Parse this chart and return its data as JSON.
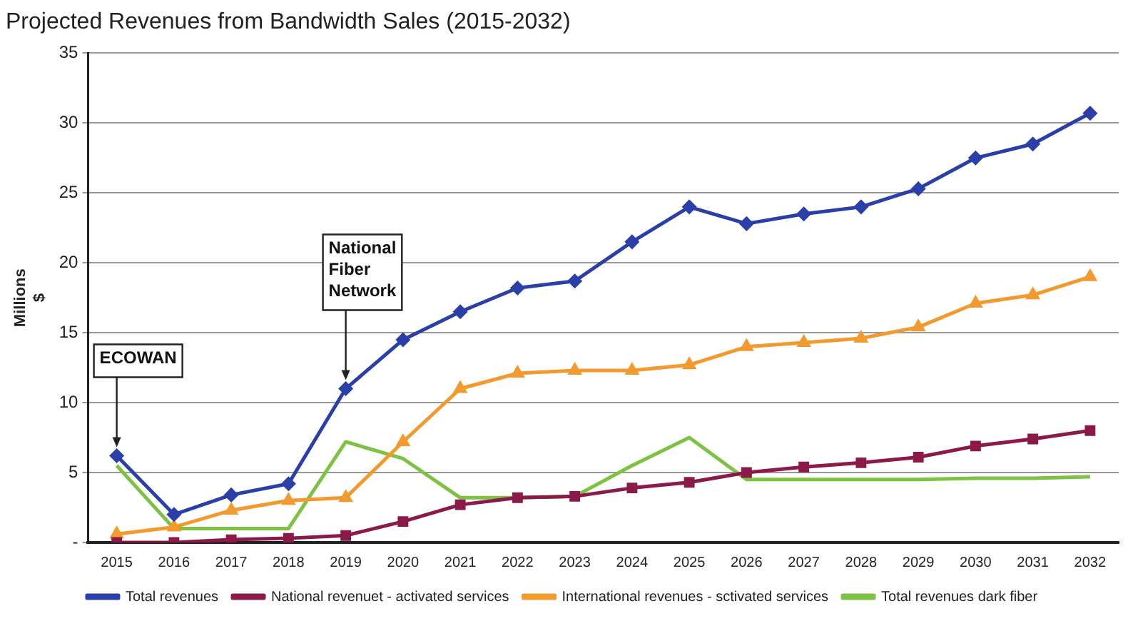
{
  "chart_data": {
    "type": "line",
    "title": "Projected Revenues from Bandwidth Sales (2015-2032)",
    "ylabel": "Millions $",
    "categories": [
      "2015",
      "2016",
      "2017",
      "2018",
      "2019",
      "2020",
      "2021",
      "2022",
      "2023",
      "2024",
      "2025",
      "2026",
      "2027",
      "2028",
      "2029",
      "2030",
      "2031",
      "2032"
    ],
    "series": [
      {
        "name": "Total revenues",
        "color": "#2b3fa8",
        "marker": "diamond",
        "values": [
          6.2,
          2.0,
          3.4,
          4.2,
          11,
          14.5,
          16.5,
          18.2,
          18.7,
          21.5,
          24,
          22.8,
          23.5,
          24,
          25.3,
          27.5,
          28.5,
          30.7
        ]
      },
      {
        "name": "National revenuet - activated services",
        "color": "#8b1a4a",
        "marker": "square",
        "values": [
          0,
          0,
          0.2,
          0.3,
          0.5,
          1.5,
          2.7,
          3.2,
          3.3,
          3.9,
          4.3,
          5,
          5.4,
          5.7,
          6.1,
          6.9,
          7.4,
          8.0
        ]
      },
      {
        "name": "International revenues - sctivated services",
        "color": "#f39a2e",
        "marker": "triangle",
        "values": [
          0.6,
          1.1,
          2.3,
          3.0,
          3.2,
          7.2,
          11,
          12.1,
          12.3,
          12.3,
          12.7,
          14,
          14.3,
          14.6,
          15.4,
          17.1,
          17.7,
          19
        ]
      },
      {
        "name": "Total revenues dark fiber",
        "color": "#7dc242",
        "marker": "none",
        "values": [
          5.5,
          1.0,
          1.0,
          1.0,
          7.2,
          6.0,
          3.2,
          3.2,
          3.3,
          5.5,
          7.5,
          4.5,
          4.5,
          4.5,
          4.5,
          4.6,
          4.6,
          4.7
        ]
      }
    ],
    "ylim": [
      0,
      35
    ],
    "yticks": [
      {
        "value": 0,
        "label": "-"
      },
      5,
      10,
      15,
      20,
      25,
      30,
      35
    ],
    "grid": "y",
    "legend": "bottom",
    "line_style": "solid",
    "annotations": [
      {
        "text": "ECOWAN",
        "x": "2015",
        "y": 6.2
      },
      {
        "text": "National Fiber Network",
        "x": "2019",
        "y": 11
      }
    ]
  }
}
